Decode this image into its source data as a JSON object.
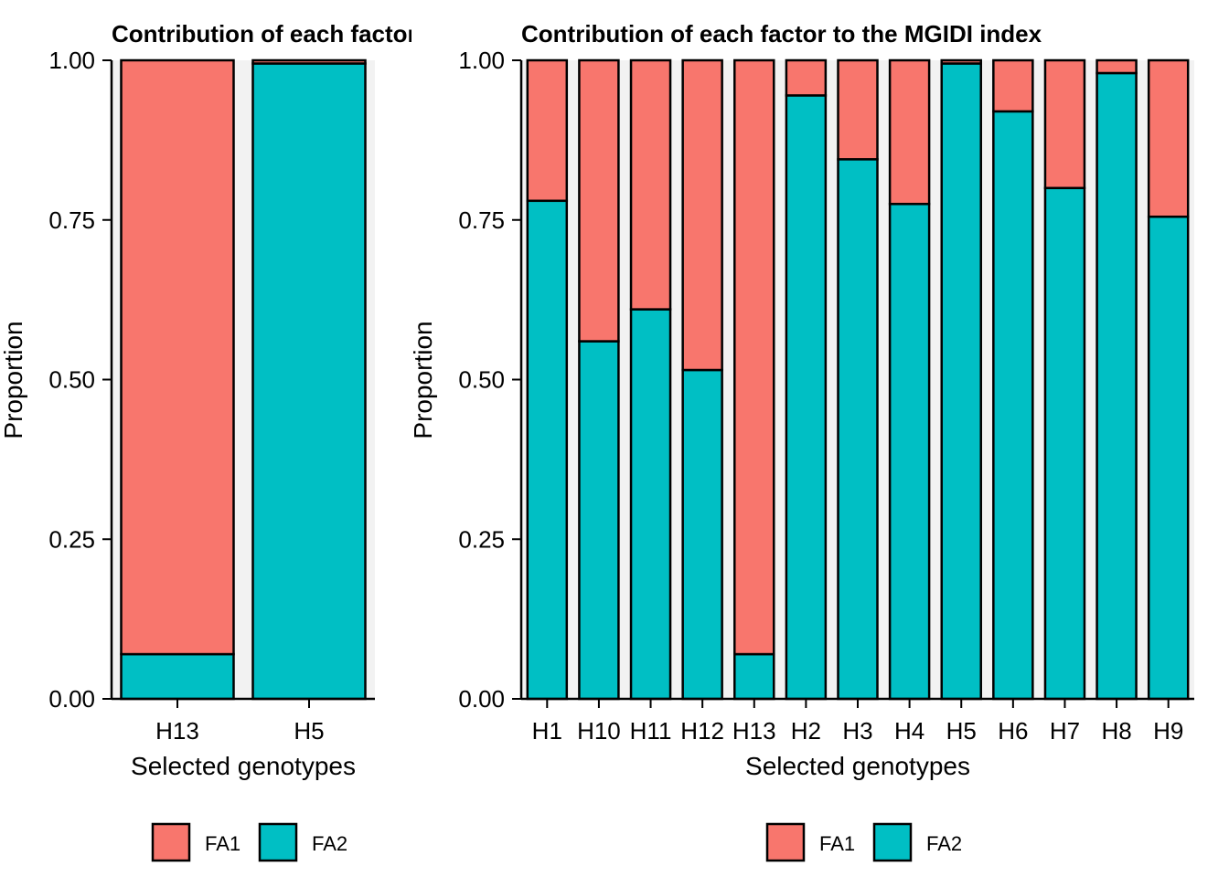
{
  "colors": {
    "FA1": "#F8766D",
    "FA2": "#00BFC4",
    "panel_bg": "#F2F2F2",
    "bar_border": "#000000"
  },
  "chart_data": [
    {
      "type": "bar",
      "stacked": true,
      "title": "Contribution of each factor to the MGIDI index",
      "xlabel": "Selected genotypes",
      "ylabel": "Proportion",
      "ylim": [
        0,
        1
      ],
      "yticks": [
        "0.00",
        "0.25",
        "0.50",
        "0.75",
        "1.00"
      ],
      "categories": [
        "H13",
        "H5"
      ],
      "series": [
        {
          "name": "FA2",
          "values": [
            0.07,
            0.995
          ]
        },
        {
          "name": "FA1",
          "values": [
            0.93,
            0.005
          ]
        }
      ],
      "legend": {
        "position": "bottom",
        "labels": [
          "FA1",
          "FA2"
        ]
      }
    },
    {
      "type": "bar",
      "stacked": true,
      "title": "Contribution of each factor to the MGIDI index",
      "xlabel": "Selected genotypes",
      "ylabel": "Proportion",
      "ylim": [
        0,
        1
      ],
      "yticks": [
        "0.00",
        "0.25",
        "0.50",
        "0.75",
        "1.00"
      ],
      "categories": [
        "H1",
        "H10",
        "H11",
        "H12",
        "H13",
        "H2",
        "H3",
        "H4",
        "H5",
        "H6",
        "H7",
        "H8",
        "H9"
      ],
      "series": [
        {
          "name": "FA2",
          "values": [
            0.78,
            0.56,
            0.61,
            0.515,
            0.07,
            0.945,
            0.845,
            0.775,
            0.995,
            0.92,
            0.8,
            0.98,
            0.755
          ]
        },
        {
          "name": "FA1",
          "values": [
            0.22,
            0.44,
            0.39,
            0.485,
            0.93,
            0.055,
            0.155,
            0.225,
            0.005,
            0.08,
            0.2,
            0.02,
            0.245
          ]
        }
      ],
      "legend": {
        "position": "bottom",
        "labels": [
          "FA1",
          "FA2"
        ]
      }
    }
  ]
}
